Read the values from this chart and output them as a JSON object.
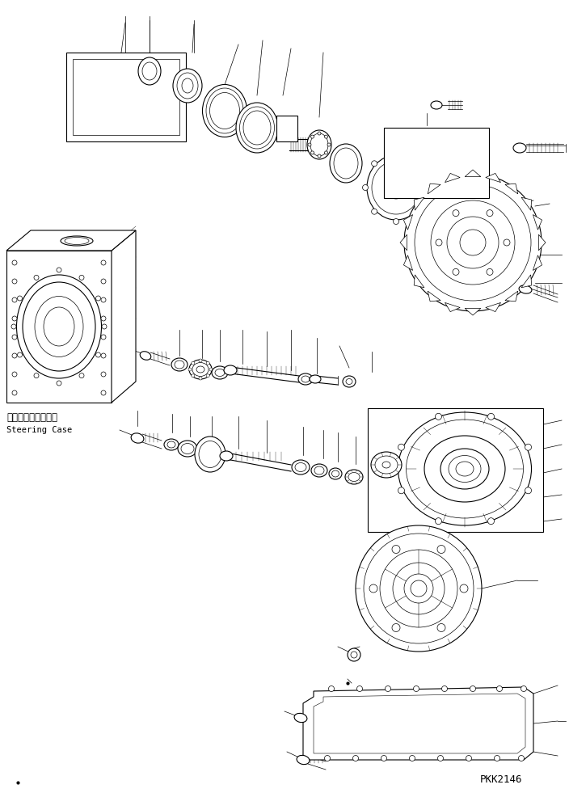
{
  "background_color": "#ffffff",
  "text_color": "#000000",
  "line_color": "#000000",
  "watermark": "PKK2146",
  "label_jp": "ステアリングケース",
  "label_en": "Steering Case",
  "figsize": [
    7.04,
    9.81
  ],
  "dpi": 100
}
